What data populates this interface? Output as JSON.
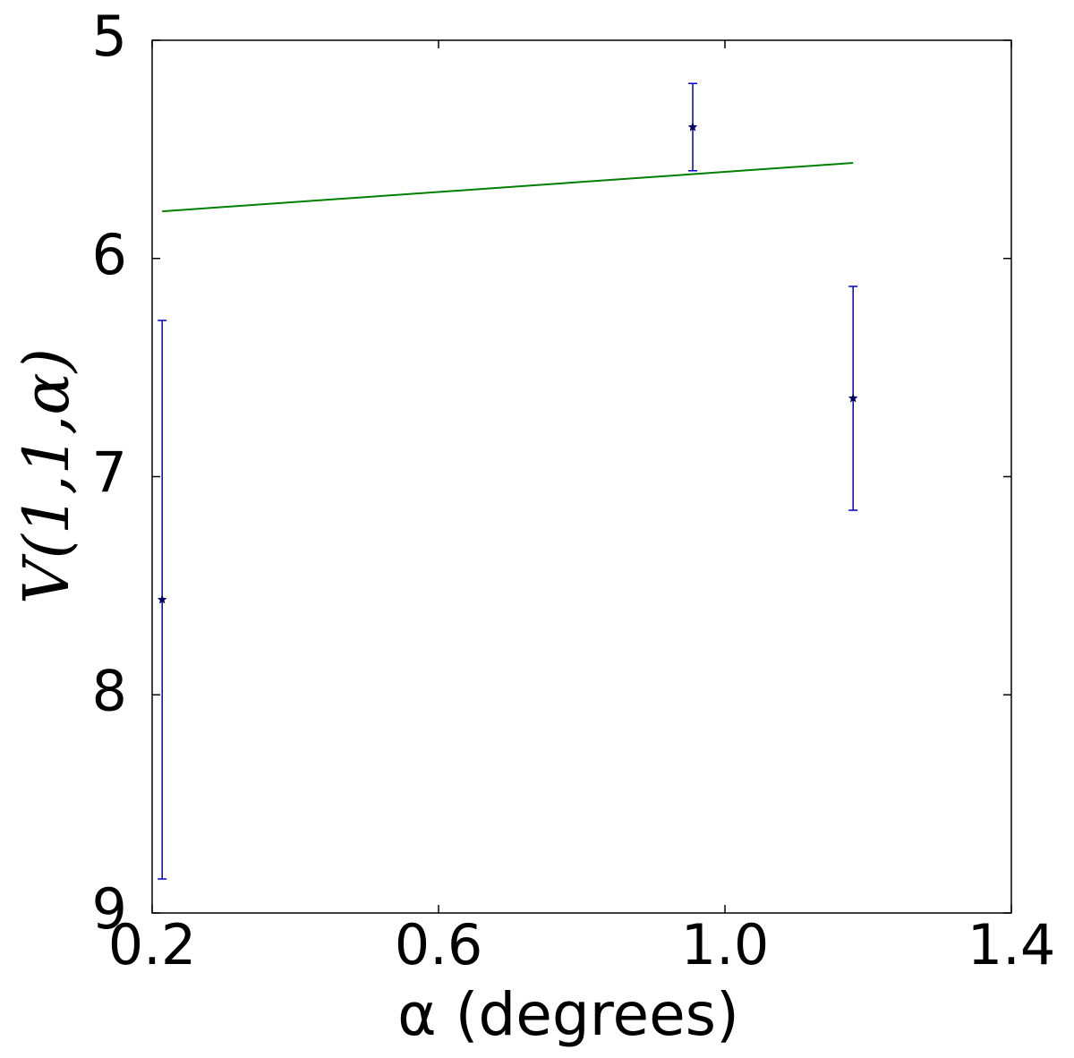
{
  "chart_data": {
    "type": "scatter",
    "xlabel": "α (degrees)",
    "ylabel": "V(1,1,α)",
    "xlim": [
      0.2,
      1.4
    ],
    "xticks": [
      0.2,
      0.6,
      {
        "value": 1,
        "label": "1.0"
      },
      1.4
    ],
    "ylim": [
      9,
      5
    ],
    "yticks": [
      5,
      6,
      7,
      8,
      9
    ],
    "series": [
      {
        "type": "errorbar",
        "color": "#0000cc",
        "marker_color": "#000066",
        "x": [
          0.214,
          0.955,
          1.179
        ],
        "values": [
          7.564,
          5.398,
          6.641
        ],
        "errors": [
          1.28,
          0.2,
          0.513
        ]
      },
      {
        "type": "line",
        "color": "#008000",
        "x": [
          0.214,
          1.179
        ],
        "values": [
          5.784,
          5.562
        ]
      }
    ]
  }
}
